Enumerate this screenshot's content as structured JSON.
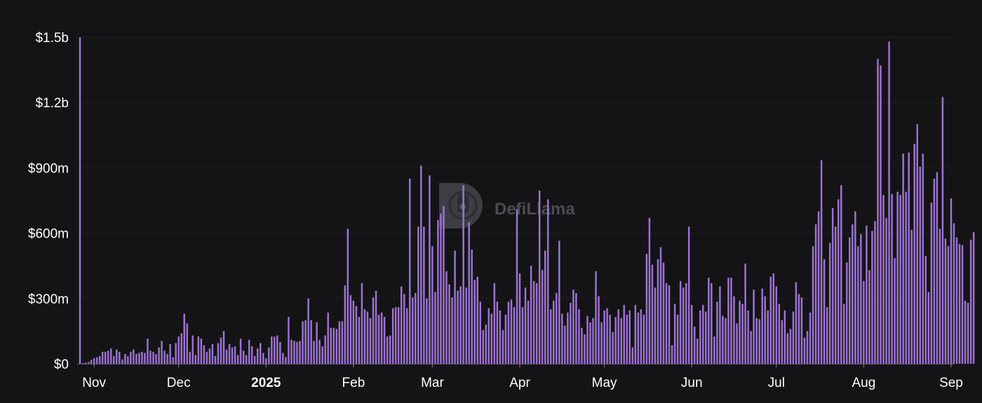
{
  "watermark": {
    "text": "DefiLlama",
    "icon": "defillama-llama-logo-icon"
  },
  "colors": {
    "background": "#141417",
    "bar": "#9d72d1",
    "bar_stroke": "#b38ae0",
    "grid": "#1f1f24"
  },
  "chart_data": {
    "type": "bar",
    "title": "",
    "xlabel": "",
    "ylabel": "",
    "x_range": [
      "2024-10-26",
      "2025-09-02"
    ],
    "ylim": [
      0,
      1500000000
    ],
    "y_ticks": [
      {
        "value": 0,
        "label": "$0"
      },
      {
        "value": 300000000,
        "label": "$300m"
      },
      {
        "value": 600000000,
        "label": "$600m"
      },
      {
        "value": 900000000,
        "label": "$900m"
      },
      {
        "value": 1200000000,
        "label": "$1.2b"
      },
      {
        "value": 1500000000,
        "label": "$1.5b"
      }
    ],
    "x_ticks": [
      {
        "date": "2024-11-01",
        "label": "Nov",
        "bold": false
      },
      {
        "date": "2024-12-01",
        "label": "Dec",
        "bold": false
      },
      {
        "date": "2025-01-01",
        "label": "2025",
        "bold": true
      },
      {
        "date": "2025-02-01",
        "label": "Feb",
        "bold": false
      },
      {
        "date": "2025-03-01",
        "label": "Mar",
        "bold": false
      },
      {
        "date": "2025-04-01",
        "label": "Apr",
        "bold": false
      },
      {
        "date": "2025-05-01",
        "label": "May",
        "bold": false
      },
      {
        "date": "2025-06-01",
        "label": "Jun",
        "bold": false
      },
      {
        "date": "2025-07-01",
        "label": "Jul",
        "bold": false
      },
      {
        "date": "2025-08-01",
        "label": "Aug",
        "bold": false
      },
      {
        "date": "2025-09-01",
        "label": "Sep",
        "bold": false
      }
    ],
    "grid": true,
    "legend": "none",
    "series_unit": "USD",
    "start_date": "2024-10-27",
    "values_millions": [
      1500,
      3,
      5,
      8,
      18,
      25,
      30,
      35,
      55,
      55,
      60,
      70,
      35,
      65,
      55,
      20,
      45,
      35,
      55,
      65,
      45,
      50,
      55,
      50,
      115,
      60,
      55,
      45,
      75,
      105,
      60,
      45,
      90,
      30,
      95,
      125,
      140,
      230,
      185,
      55,
      130,
      40,
      125,
      115,
      85,
      55,
      70,
      90,
      35,
      95,
      120,
      150,
      65,
      90,
      75,
      80,
      40,
      115,
      60,
      40,
      110,
      80,
      35,
      70,
      95,
      50,
      25,
      75,
      125,
      125,
      130,
      100,
      50,
      30,
      215,
      110,
      105,
      100,
      105,
      195,
      200,
      300,
      200,
      105,
      190,
      110,
      80,
      130,
      235,
      165,
      165,
      160,
      195,
      195,
      360,
      620,
      315,
      290,
      265,
      215,
      370,
      250,
      240,
      210,
      305,
      335,
      225,
      235,
      215,
      125,
      130,
      255,
      260,
      260,
      355,
      320,
      255,
      850,
      305,
      325,
      630,
      910,
      630,
      300,
      865,
      540,
      330,
      660,
      690,
      725,
      425,
      365,
      305,
      520,
      335,
      355,
      820,
      350,
      650,
      525,
      385,
      400,
      285,
      155,
      180,
      255,
      230,
      370,
      285,
      245,
      155,
      225,
      285,
      295,
      260,
      710,
      415,
      260,
      350,
      290,
      450,
      380,
      370,
      795,
      430,
      520,
      755,
      250,
      290,
      325,
      565,
      230,
      175,
      235,
      280,
      340,
      325,
      250,
      165,
      135,
      220,
      190,
      210,
      425,
      310,
      190,
      245,
      255,
      225,
      145,
      215,
      250,
      210,
      270,
      225,
      245,
      75,
      270,
      235,
      250,
      225,
      505,
      670,
      455,
      350,
      480,
      535,
      465,
      370,
      360,
      85,
      275,
      225,
      380,
      350,
      370,
      630,
      270,
      170,
      115,
      245,
      270,
      240,
      395,
      370,
      125,
      285,
      355,
      220,
      210,
      395,
      395,
      310,
      185,
      290,
      275,
      460,
      245,
      150,
      340,
      210,
      205,
      345,
      310,
      245,
      400,
      415,
      355,
      275,
      200,
      245,
      140,
      160,
      240,
      375,
      320,
      305,
      120,
      150,
      235,
      540,
      640,
      700,
      935,
      480,
      260,
      555,
      715,
      630,
      755,
      820,
      275,
      465,
      580,
      640,
      700,
      540,
      595,
      380,
      635,
      430,
      610,
      655,
      1400,
      1370,
      775,
      670,
      1480,
      780,
      485,
      790,
      775,
      965,
      790,
      970,
      615,
      1010,
      1100,
      905,
      965,
      495,
      330,
      740,
      850,
      880,
      620,
      1225,
      575,
      540,
      760,
      645,
      580,
      550,
      545,
      290,
      280,
      570,
      605
    ]
  }
}
